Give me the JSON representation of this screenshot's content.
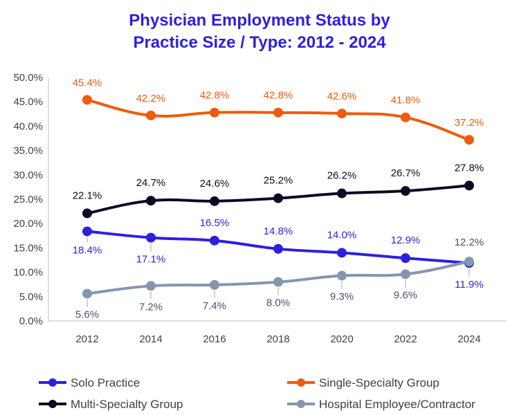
{
  "chart_data": {
    "type": "line",
    "title_line1": "Physician Employment Status by",
    "title_line2": "Practice Size / Type: 2012 - 2024",
    "x": [
      "2012",
      "2014",
      "2016",
      "2018",
      "2020",
      "2022",
      "2024"
    ],
    "ylim": [
      0,
      50
    ],
    "yticks": [
      "0.0%",
      "5.0%",
      "10.0%",
      "15.0%",
      "20.0%",
      "25.0%",
      "30.0%",
      "35.0%",
      "40.0%",
      "45.0%",
      "50.0%"
    ],
    "grid": false,
    "legend_position": "bottom",
    "series": [
      {
        "name": "Solo Practice",
        "color": "#2d1fe0",
        "values": [
          18.4,
          17.1,
          16.5,
          14.8,
          14.0,
          12.9,
          11.9
        ],
        "labels": [
          "18.4%",
          "17.1%",
          "16.5%",
          "14.8%",
          "14.0%",
          "12.9%",
          "11.9%"
        ]
      },
      {
        "name": "Single-Specialty Group",
        "color": "#f05a0a",
        "values": [
          45.4,
          42.2,
          42.8,
          42.8,
          42.6,
          41.8,
          37.2
        ],
        "labels": [
          "45.4%",
          "42.2%",
          "42.8%",
          "42.8%",
          "42.6%",
          "41.8%",
          "37.2%"
        ]
      },
      {
        "name": "Multi-Specialty Group",
        "color": "#0a0a23",
        "values": [
          22.1,
          24.7,
          24.6,
          25.2,
          26.2,
          26.7,
          27.8
        ],
        "labels": [
          "22.1%",
          "24.7%",
          "24.6%",
          "25.2%",
          "26.2%",
          "26.7%",
          "27.8%"
        ]
      },
      {
        "name": "Hospital Employee/Contractor",
        "color": "#8496b0",
        "label_color": "#44546a",
        "values": [
          5.6,
          7.2,
          7.4,
          8.0,
          9.3,
          9.6,
          12.2
        ],
        "labels": [
          "5.6%",
          "7.2%",
          "7.4%",
          "8.0%",
          "9.3%",
          "9.6%",
          "12.2%"
        ]
      }
    ]
  }
}
